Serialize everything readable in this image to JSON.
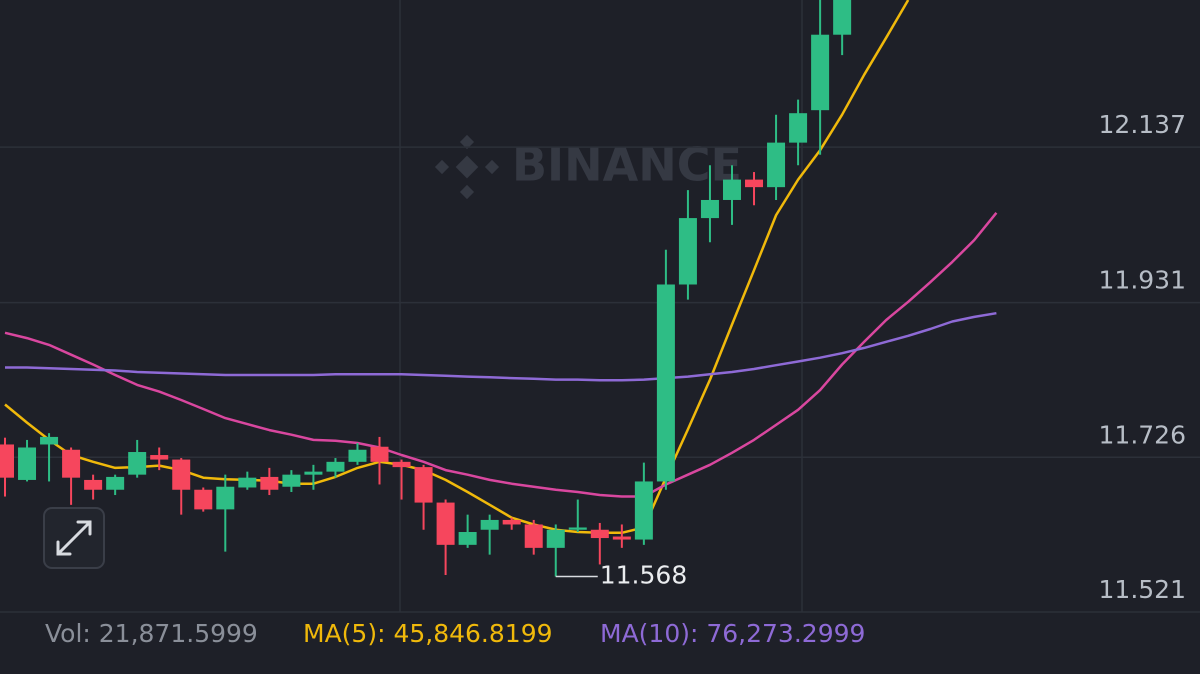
{
  "chart_data": {
    "type": "candlestick",
    "watermark": "BINANCE",
    "categories": [
      null,
      null,
      null,
      null,
      null,
      null,
      null,
      null,
      null,
      null,
      null,
      null,
      null,
      null,
      null,
      null,
      null,
      null,
      null,
      null,
      null,
      null,
      null,
      null,
      null,
      null,
      null,
      null,
      null,
      null,
      null,
      null,
      null,
      null,
      null,
      null,
      null,
      null,
      null,
      null,
      null,
      null,
      null,
      null,
      null,
      null
    ],
    "open": [
      11.743,
      11.696,
      11.743,
      11.736,
      11.696,
      11.683,
      11.703,
      11.729,
      11.723,
      11.683,
      11.657,
      11.686,
      11.7,
      11.687,
      11.703,
      11.707,
      11.72,
      11.74,
      11.72,
      11.713,
      11.666,
      11.61,
      11.63,
      11.643,
      11.637,
      11.606,
      11.63,
      11.63,
      11.621,
      11.617,
      11.694,
      11.955,
      12.043,
      12.067,
      12.094,
      12.084,
      12.143,
      12.186,
      12.286,
      null,
      null,
      null,
      null,
      null,
      null,
      null
    ],
    "high": [
      11.752,
      11.749,
      11.758,
      11.739,
      11.703,
      11.703,
      11.749,
      11.739,
      11.725,
      11.686,
      11.703,
      11.707,
      11.712,
      11.709,
      11.716,
      11.725,
      11.745,
      11.753,
      11.723,
      11.716,
      11.67,
      11.65,
      11.65,
      11.646,
      11.643,
      11.637,
      11.67,
      11.639,
      11.637,
      11.719,
      12.001,
      12.08,
      12.113,
      12.113,
      12.104,
      12.18,
      12.2,
      12.332,
      12.332,
      null,
      null,
      null,
      null,
      null,
      null,
      null
    ],
    "low": [
      11.674,
      11.694,
      11.694,
      11.663,
      11.67,
      11.676,
      11.699,
      11.709,
      11.65,
      11.654,
      11.601,
      11.683,
      11.676,
      11.68,
      11.683,
      11.699,
      11.716,
      11.69,
      11.67,
      11.63,
      11.57,
      11.606,
      11.597,
      11.63,
      11.597,
      11.568,
      11.627,
      11.584,
      11.606,
      11.61,
      11.683,
      11.935,
      12.011,
      12.034,
      12.06,
      12.067,
      12.113,
      12.127,
      12.259,
      null,
      null,
      null,
      null,
      null,
      null,
      null
    ],
    "close": [
      11.699,
      11.739,
      11.753,
      11.699,
      11.683,
      11.7,
      11.733,
      11.723,
      11.683,
      11.657,
      11.687,
      11.699,
      11.683,
      11.703,
      11.707,
      11.72,
      11.736,
      11.72,
      11.713,
      11.666,
      11.61,
      11.627,
      11.643,
      11.637,
      11.606,
      11.63,
      11.633,
      11.619,
      11.617,
      11.694,
      11.955,
      12.043,
      12.067,
      12.094,
      12.084,
      12.143,
      12.182,
      12.286,
      12.332,
      null,
      null,
      null,
      null,
      null,
      null,
      null
    ],
    "up_color": "#2ebd85",
    "down_color": "#f6465d",
    "series": [
      {
        "color": "#f0b90b",
        "values": [
          11.796,
          11.772,
          11.749,
          11.729,
          11.72,
          11.712,
          11.713,
          11.715,
          11.709,
          11.699,
          11.697,
          11.696,
          11.695,
          11.691,
          11.691,
          11.7,
          11.712,
          11.72,
          11.716,
          11.709,
          11.696,
          11.68,
          11.663,
          11.646,
          11.637,
          11.63,
          11.627,
          11.626,
          11.626,
          11.633,
          11.699,
          11.763,
          11.829,
          11.902,
          11.974,
          12.047,
          12.094,
          12.133,
          12.18,
          12.233,
          12.282,
          12.332,
          null,
          null,
          null,
          null
        ]
      },
      {
        "color": "#d9479f",
        "values": [
          11.891,
          11.884,
          11.875,
          11.862,
          11.849,
          11.835,
          11.822,
          11.813,
          11.802,
          11.79,
          11.778,
          11.77,
          11.762,
          11.756,
          11.749,
          11.748,
          11.745,
          11.739,
          11.729,
          11.72,
          11.709,
          11.703,
          11.696,
          11.691,
          11.687,
          11.683,
          11.68,
          11.676,
          11.674,
          11.674,
          11.69,
          11.703,
          11.716,
          11.732,
          11.749,
          11.769,
          11.789,
          11.815,
          11.849,
          11.879,
          11.908,
          11.932,
          11.958,
          11.985,
          12.014,
          12.05
        ]
      },
      {
        "color": "#8e6ad6",
        "values": [
          11.845,
          11.845,
          11.844,
          11.843,
          11.842,
          11.841,
          11.839,
          11.838,
          11.837,
          11.836,
          11.835,
          11.835,
          11.835,
          11.835,
          11.835,
          11.836,
          11.836,
          11.836,
          11.836,
          11.835,
          11.834,
          11.833,
          11.832,
          11.831,
          11.83,
          11.829,
          11.829,
          11.828,
          11.828,
          11.829,
          11.831,
          11.833,
          11.836,
          11.839,
          11.843,
          11.848,
          11.853,
          11.858,
          11.864,
          11.871,
          11.879,
          11.887,
          11.896,
          11.906,
          11.912,
          11.917
        ]
      }
    ],
    "ylim": [
      11.521,
      12.332
    ],
    "yticks": [
      12.137,
      11.931,
      11.726,
      11.521
    ],
    "grid": true,
    "annotation": 11.568,
    "stats": [
      {
        "text": "Vol: 21,871.5999",
        "color": "#8a8f99"
      },
      {
        "text": "MA(5): 45,846.8199",
        "color": "#f0b90b"
      },
      {
        "text": "MA(10): 76,273.2999",
        "color": "#8e6ad6"
      }
    ]
  }
}
